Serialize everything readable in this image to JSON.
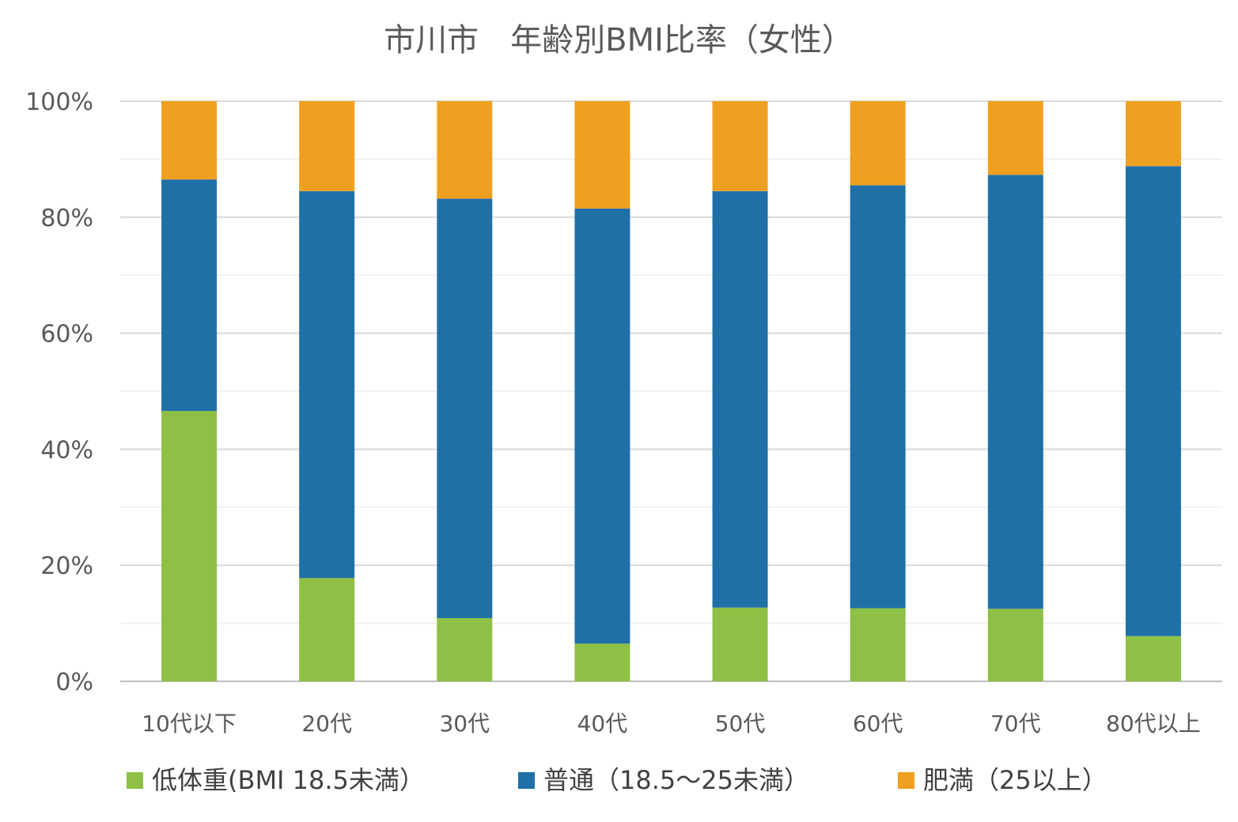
{
  "chart_data": {
    "type": "bar",
    "stacked": true,
    "title": "市川市　年齢別BMI比率（女性）",
    "categories": [
      "10代以下",
      "20代",
      "30代",
      "40代",
      "50代",
      "60代",
      "70代",
      "80代以上"
    ],
    "series": [
      {
        "name": "低体重(BMI  18.5未満）",
        "color": "#8DC045",
        "values": [
          46.6,
          17.8,
          10.9,
          6.5,
          12.7,
          12.6,
          12.5,
          7.8
        ]
      },
      {
        "name": "普通（18.5～25未満）",
        "color": "#2070A8",
        "values": [
          39.9,
          66.7,
          72.3,
          75.0,
          71.8,
          72.9,
          74.8,
          81.0
        ]
      },
      {
        "name": "肥満（25以上）",
        "color": "#F0A020",
        "values": [
          13.5,
          15.5,
          16.8,
          18.5,
          15.5,
          14.5,
          12.7,
          11.2
        ]
      }
    ],
    "ylim": [
      0,
      100
    ],
    "yticks": [
      "0%",
      "20%",
      "40%",
      "60%",
      "80%",
      "100%"
    ],
    "xlabel": "",
    "ylabel": "",
    "grid": true,
    "legend_position": "bottom"
  }
}
